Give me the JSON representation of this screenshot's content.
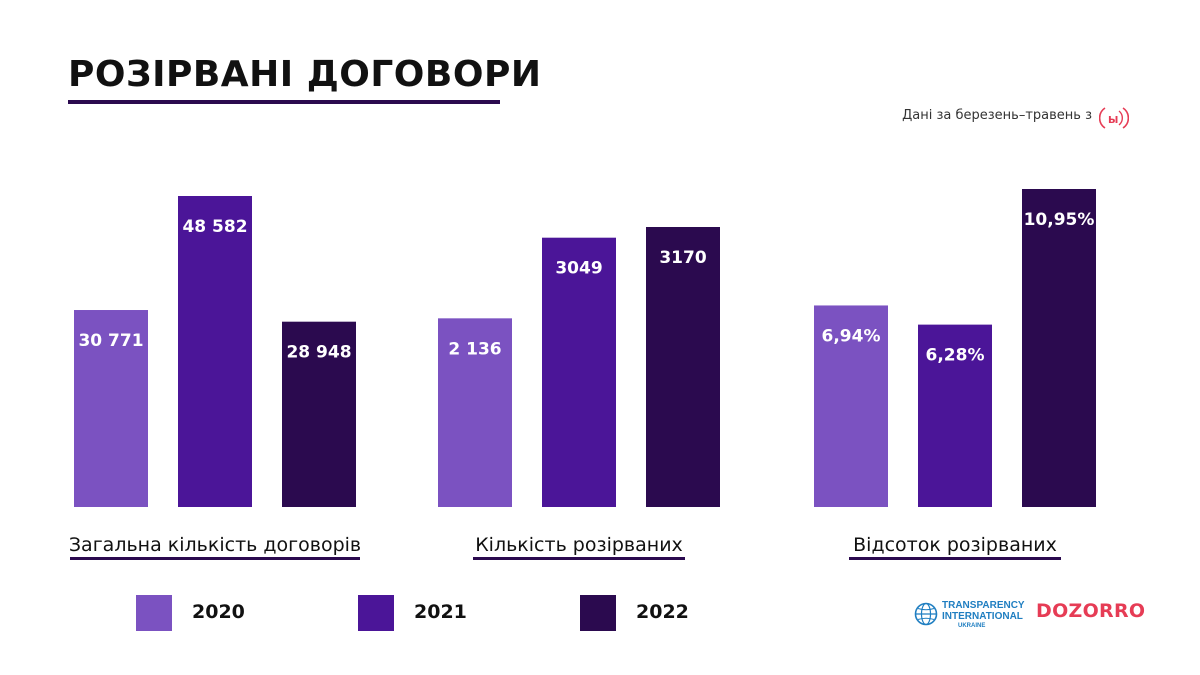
{
  "title": "РОЗІРВАНІ ДОГОВОРИ",
  "note": "Дані за березень–травень з",
  "note_logo_icon": "prozorro-icon",
  "colors": {
    "2020": "#7b52c1",
    "2021": "#4b1598",
    "2022": "#2b0a4f",
    "accent": "#2b0a4f",
    "label_text": "#ffffff",
    "logo_red": "#e63c55",
    "logo_blue": "#1f7ec1"
  },
  "chart_data": [
    {
      "type": "bar",
      "xlabel": "Загальна кількість договорів",
      "categories": [
        "2020",
        "2021",
        "2022"
      ],
      "values": [
        30771,
        48582,
        28948
      ],
      "value_labels": [
        "30 771",
        "48 582",
        "28 948"
      ]
    },
    {
      "type": "bar",
      "xlabel": "Кількість розірваних",
      "categories": [
        "2020",
        "2021",
        "2022"
      ],
      "values": [
        2136,
        3049,
        3170
      ],
      "value_labels": [
        "2 136",
        "3049",
        "3170"
      ]
    },
    {
      "type": "bar",
      "xlabel": "Відсоток розірваних",
      "categories": [
        "2020",
        "2021",
        "2022"
      ],
      "values": [
        6.94,
        6.28,
        10.95
      ],
      "value_labels": [
        "6,94%",
        "6,28%",
        "10,95%"
      ]
    }
  ],
  "legend": [
    "2020",
    "2021",
    "2022"
  ],
  "logos": {
    "ti_line1": "TRANSPARENCY",
    "ti_line2": "INTERNATIONAL",
    "ti_line3": "UKRAINE",
    "ti_icon": "globe-icon",
    "dozorro": "DOZORRO"
  }
}
